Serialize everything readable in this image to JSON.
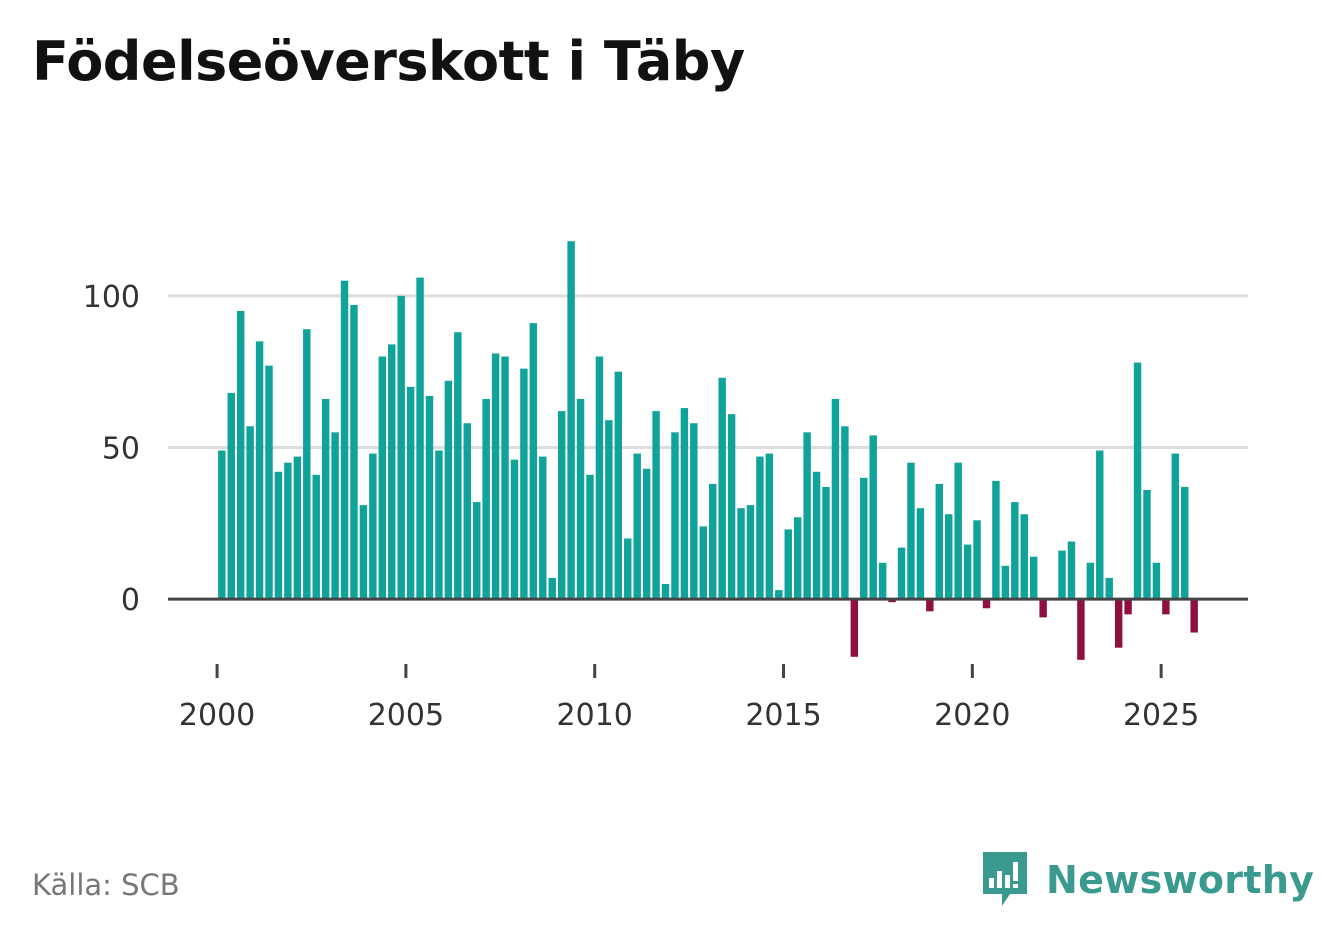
{
  "title": "Födelseöverskott i Täby",
  "source": "Källa: SCB",
  "brand": {
    "name": "Newsworthy",
    "icon": "newsworthy-logo-icon"
  },
  "colors": {
    "positive": "#10a39a",
    "negative": "#8f0f41",
    "grid": "#dddddd",
    "axis": "#444444",
    "brand": "#3a9a90"
  },
  "chart_data": {
    "type": "bar",
    "title": "Födelseöverskott i Täby",
    "xlabel": "",
    "ylabel": "",
    "x_ticks": [
      2000,
      2005,
      2010,
      2015,
      2020,
      2025
    ],
    "y_ticks": [
      0,
      50,
      100
    ],
    "xlim": [
      1998.7,
      2027.3
    ],
    "ylim": [
      -25,
      125
    ],
    "grid": true,
    "legend": "none",
    "x": [
      2000.125,
      2000.375,
      2000.625,
      2000.875,
      2001.125,
      2001.375,
      2001.625,
      2001.875,
      2002.125,
      2002.375,
      2002.625,
      2002.875,
      2003.125,
      2003.375,
      2003.625,
      2003.875,
      2004.125,
      2004.375,
      2004.625,
      2004.875,
      2005.125,
      2005.375,
      2005.625,
      2005.875,
      2006.125,
      2006.375,
      2006.625,
      2006.875,
      2007.125,
      2007.375,
      2007.625,
      2007.875,
      2008.125,
      2008.375,
      2008.625,
      2008.875,
      2009.125,
      2009.375,
      2009.625,
      2009.875,
      2010.125,
      2010.375,
      2010.625,
      2010.875,
      2011.125,
      2011.375,
      2011.625,
      2011.875,
      2012.125,
      2012.375,
      2012.625,
      2012.875,
      2013.125,
      2013.375,
      2013.625,
      2013.875,
      2014.125,
      2014.375,
      2014.625,
      2014.875,
      2015.125,
      2015.375,
      2015.625,
      2015.875,
      2016.125,
      2016.375,
      2016.625,
      2016.875,
      2017.125,
      2017.375,
      2017.625,
      2017.875,
      2018.125,
      2018.375,
      2018.625,
      2018.875,
      2019.125,
      2019.375,
      2019.625,
      2019.875,
      2020.125,
      2020.375,
      2020.625,
      2020.875,
      2021.125,
      2021.375,
      2021.625,
      2021.875,
      2022.125,
      2022.375,
      2022.625,
      2022.875,
      2023.125,
      2023.375,
      2023.625,
      2023.875,
      2024.125,
      2024.375,
      2024.625,
      2024.875,
      2025.125,
      2025.375,
      2025.625,
      2025.875
    ],
    "values": [
      49,
      68,
      95,
      57,
      85,
      77,
      42,
      45,
      47,
      89,
      41,
      66,
      55,
      105,
      97,
      31,
      48,
      80,
      84,
      100,
      70,
      106,
      67,
      49,
      72,
      88,
      58,
      32,
      66,
      81,
      80,
      46,
      76,
      91,
      47,
      7,
      62,
      118,
      66,
      41,
      80,
      59,
      75,
      20,
      48,
      43,
      62,
      5,
      55,
      63,
      58,
      24,
      38,
      73,
      61,
      30,
      31,
      47,
      48,
      3,
      23,
      27,
      55,
      42,
      37,
      66,
      57,
      -19,
      40,
      54,
      12,
      -1,
      17,
      45,
      30,
      -4,
      38,
      28,
      45,
      18,
      26,
      -3,
      39,
      11,
      32,
      28,
      14,
      -6,
      0,
      16,
      19,
      -20,
      12,
      49,
      7,
      -16,
      -5,
      78,
      36,
      12,
      -5,
      48,
      37,
      -11
    ]
  }
}
